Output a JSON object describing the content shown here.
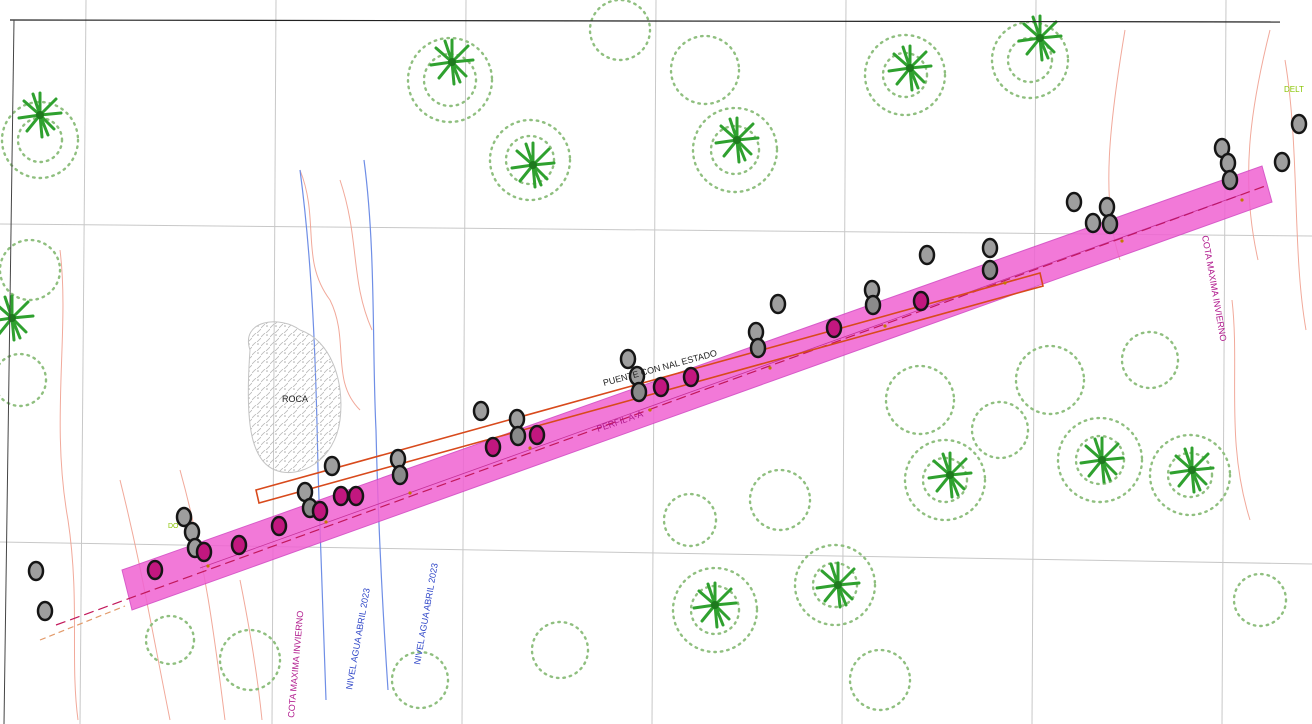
{
  "labels": {
    "roca": "ROCA",
    "puente": "PUENTE CON NAL ESTADO",
    "perfil": "PERFIL A-A",
    "cota_left": "COTA MAXIMA INVIERNO",
    "nivel_1": "NIVEL AGUA ABRIL 2023",
    "nivel_2": "NIVEL AGUA ABRIL 2023",
    "cota_right": "COTA MAXIMA INVIERNO",
    "delta": "DELT",
    "do": "DO"
  },
  "colors": {
    "corridor": "#f062d2",
    "corridor_edge": "#d13fc0",
    "centerline": "#c2185b",
    "bridge_outline": "#d84a1c",
    "grid": "#c8c8c8",
    "contour": "#f0a090",
    "water_line": "#6f8ee6",
    "tree": "#2fa12f",
    "shrub": "#8fbf7f",
    "marker_grey": "#9e9e9e",
    "marker_magenta": "#c2177f",
    "marker_ring": "#151515",
    "text_black": "#222222",
    "text_magenta": "#b0188c",
    "text_blue": "#3047c8",
    "text_green": "#88c400"
  },
  "icons": {
    "tree": "palm-tree-icon",
    "marker": "survey-point-icon"
  }
}
